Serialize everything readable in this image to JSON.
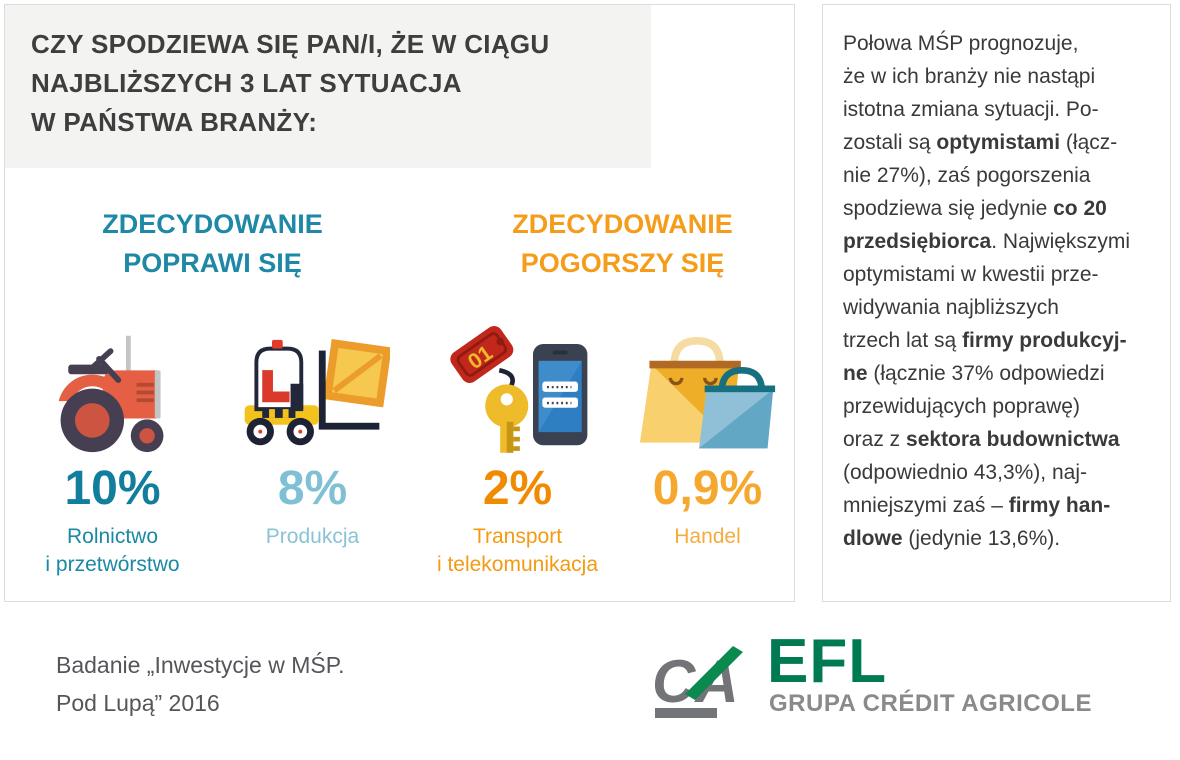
{
  "question": {
    "lines": [
      "CZY SPODZIEWA SIĘ PAN/I, ŻE W CIĄGU",
      "NAJBLIŻSZYCH 3 LAT SYTUACJA",
      "W PAŃSTWA BRANŻY:"
    ]
  },
  "groups": [
    {
      "lines": [
        "ZDECYDOWANIE",
        "POPRAWI SIĘ"
      ],
      "color": "#1e89a6"
    },
    {
      "lines": [
        "ZDECYDOWANIE",
        "POGORSZY SIĘ"
      ],
      "color": "#f59c1a"
    }
  ],
  "sectors": [
    {
      "icon": "tractor-icon",
      "value": "10%",
      "lines": [
        "Rolnictwo",
        "i przetwórstwo"
      ],
      "value_color": "#117e9d",
      "label_color": "#1c89a4"
    },
    {
      "icon": "forklift-icon",
      "value": "8%",
      "lines": [
        "Produkcja"
      ],
      "value_color": "#7fc0d5",
      "label_color": "#8ac3d6"
    },
    {
      "icon": "key-phone-icon",
      "value": "2%",
      "lines": [
        "Transport",
        "i telekomunikacja"
      ],
      "value_color": "#f08a00",
      "label_color": "#f49a12"
    },
    {
      "icon": "shopping-bags-icon",
      "value": "0,9%",
      "lines": [
        "Handel"
      ],
      "value_color": "#f6a82e",
      "label_color": "#f6ab3c"
    }
  ],
  "icons": {
    "key_tag_text": "01"
  },
  "analysis": {
    "lines": [
      [
        {
          "t": "Połowa MŚP prognozuje,",
          "b": false
        }
      ],
      [
        {
          "t": "że w ich branży nie nastąpi",
          "b": false
        }
      ],
      [
        {
          "t": "istotna zmiana sytuacji. Po-",
          "b": false
        }
      ],
      [
        {
          "t": "zostali są ",
          "b": false
        },
        {
          "t": "optymistami",
          "b": true
        },
        {
          "t": " (łącz-",
          "b": false
        }
      ],
      [
        {
          "t": "nie 27%), zaś pogorszenia",
          "b": false
        }
      ],
      [
        {
          "t": "spodziewa się jedynie ",
          "b": false
        },
        {
          "t": "co 20",
          "b": true
        }
      ],
      [
        {
          "t": "przedsiębiorca",
          "b": true
        },
        {
          "t": ". Największymi",
          "b": false
        }
      ],
      [
        {
          "t": "optymistami w kwestii prze-",
          "b": false
        }
      ],
      [
        {
          "t": "widywania najbliższych",
          "b": false
        }
      ],
      [
        {
          "t": "trzech lat są ",
          "b": false
        },
        {
          "t": "firmy produkcyj-",
          "b": true
        }
      ],
      [
        {
          "t": "ne",
          "b": true
        },
        {
          "t": " (łącznie 37% odpowiedzi",
          "b": false
        }
      ],
      [
        {
          "t": "przewidujących poprawę)",
          "b": false
        }
      ],
      [
        {
          "t": "oraz z ",
          "b": false
        },
        {
          "t": "sektora budownictwa",
          "b": true
        }
      ],
      [
        {
          "t": "(odpowiednio 43,3%), naj-",
          "b": false
        }
      ],
      [
        {
          "t": "mniejszymi zaś – ",
          "b": false
        },
        {
          "t": "firmy han-",
          "b": true
        }
      ],
      [
        {
          "t": "dlowe",
          "b": true
        },
        {
          "t": " (jedynie 13,6%).",
          "b": false
        }
      ]
    ]
  },
  "source": {
    "lines": [
      "Badanie „Inwestycje w MŚP.",
      "Pod Lupą” 2016"
    ]
  },
  "logo": {
    "ca_monogram": "CA",
    "efl": "EFL",
    "subtitle": "GRUPA CRÉDIT AGRICOLE",
    "green": "#007a52",
    "grey": "#898a8c"
  },
  "chart_data": {
    "type": "bar",
    "title": "Czy spodziewa się Pan/i, że w ciągu najbliższych 3 lat sytuacja w Państwa branży:",
    "categories": [
      "Rolnictwo i przetwórstwo",
      "Produkcja",
      "Transport i telekomunikacja",
      "Handel"
    ],
    "values": [
      10,
      8,
      2,
      0.9
    ],
    "value_labels": [
      "10%",
      "8%",
      "2%",
      "0,9%"
    ],
    "category_groups": [
      "Zdecydowanie poprawi się",
      "Zdecydowanie poprawi się",
      "Zdecydowanie pogorszy się",
      "Zdecydowanie pogorszy się"
    ],
    "annotations": {
      "optymisci_lacznie_pct": 27,
      "pogorszenie": "co 20 przedsiębiorca",
      "firmy_produkcyjne_poprawa_pct": 37,
      "sektor_budownictwa_poprawa_pct": 43.3,
      "firmy_handlowe_poprawa_pct": 13.6
    }
  }
}
